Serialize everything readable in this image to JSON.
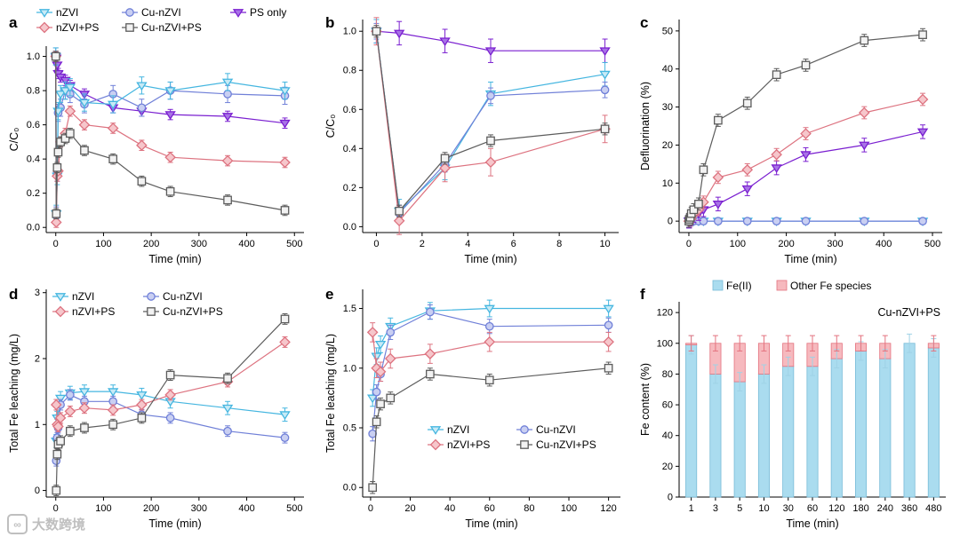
{
  "watermark": {
    "text": "大数跨境"
  },
  "series_styles": {
    "nZVI": {
      "color": "#45b6e0",
      "fill": "#c7eaf6",
      "marker": "triangle-down"
    },
    "Cu-nZVI": {
      "color": "#7080d8",
      "fill": "#c9cff2",
      "marker": "circle"
    },
    "PS only": {
      "color": "#7a1fd0",
      "fill": "#a873e6",
      "marker": "triangle-down"
    },
    "nZVI+PS": {
      "color": "#dd7380",
      "fill": "#f6c6cb",
      "marker": "diamond"
    },
    "Cu-nZVI+PS": {
      "color": "#5c5c5c",
      "fill": "#f2f2f2",
      "marker": "square"
    }
  },
  "chart_data": [
    {
      "panel_label": "a",
      "type": "line",
      "xlabel": "Time (min)",
      "ylabel": "C/C₀",
      "xlim": [
        -20,
        520
      ],
      "ylim": [
        -0.03,
        1.06
      ],
      "xticks": [
        0,
        100,
        200,
        300,
        400,
        500
      ],
      "yticks": [
        0,
        0.2,
        0.4,
        0.6,
        0.8,
        1.0
      ],
      "xdec": 0,
      "ydec": 1,
      "x": [
        0,
        1,
        3,
        5,
        10,
        20,
        30,
        60,
        120,
        180,
        240,
        360,
        480
      ],
      "series": [
        {
          "name": "PS only",
          "values": [
            1.0,
            0.99,
            0.95,
            0.9,
            0.88,
            0.86,
            0.83,
            0.78,
            0.7,
            0.68,
            0.66,
            0.65,
            0.61
          ],
          "err": 0.03
        },
        {
          "name": "Cu-nZVI",
          "values": [
            1.0,
            0.07,
            0.32,
            0.67,
            0.7,
            0.8,
            0.78,
            0.72,
            0.78,
            0.7,
            0.8,
            0.78,
            0.77
          ],
          "err": 0.05
        },
        {
          "name": "nZVI",
          "values": [
            1.0,
            0.08,
            0.3,
            0.68,
            0.78,
            0.8,
            0.82,
            0.73,
            0.72,
            0.83,
            0.8,
            0.85,
            0.8
          ],
          "err": 0.05
        },
        {
          "name": "nZVI+PS",
          "values": [
            1.0,
            0.03,
            0.3,
            0.33,
            0.5,
            0.55,
            0.68,
            0.6,
            0.58,
            0.48,
            0.41,
            0.39,
            0.38
          ],
          "err": 0.03
        },
        {
          "name": "Cu-nZVI+PS",
          "values": [
            1.0,
            0.08,
            0.35,
            0.44,
            0.5,
            0.52,
            0.55,
            0.45,
            0.4,
            0.27,
            0.21,
            0.16,
            0.1
          ],
          "err": 0.03
        }
      ]
    },
    {
      "panel_label": "b",
      "type": "line",
      "xlabel": "Time (min)",
      "ylabel": "C/C₀",
      "xlim": [
        -0.6,
        10.6
      ],
      "ylim": [
        -0.03,
        1.06
      ],
      "xticks": [
        0,
        2,
        4,
        6,
        8,
        10
      ],
      "yticks": [
        0,
        0.2,
        0.4,
        0.6,
        0.8,
        1.0
      ],
      "xdec": 0,
      "ydec": 1,
      "x": [
        0,
        1,
        3,
        5,
        10
      ],
      "series": [
        {
          "name": "PS only",
          "values": [
            1.0,
            0.99,
            0.95,
            0.9,
            0.9
          ],
          "err": 0.06
        },
        {
          "name": "nZVI",
          "values": [
            1.0,
            0.08,
            0.3,
            0.68,
            0.78
          ],
          "err": 0.06
        },
        {
          "name": "Cu-nZVI",
          "values": [
            1.0,
            0.07,
            0.32,
            0.67,
            0.7
          ],
          "err": 0.04
        },
        {
          "name": "nZVI+PS",
          "values": [
            1.0,
            0.03,
            0.3,
            0.33,
            0.5
          ],
          "err": 0.07
        },
        {
          "name": "Cu-nZVI+PS",
          "values": [
            1.0,
            0.08,
            0.35,
            0.44,
            0.5
          ],
          "err": 0.03
        }
      ]
    },
    {
      "panel_label": "c",
      "type": "line",
      "xlabel": "Time (min)",
      "ylabel": "Defluorination (%)",
      "xlim": [
        -20,
        520
      ],
      "ylim": [
        -3,
        53
      ],
      "xticks": [
        0,
        100,
        200,
        300,
        400,
        500
      ],
      "yticks": [
        0,
        10,
        20,
        30,
        40,
        50
      ],
      "xdec": 0,
      "ydec": 0,
      "x": [
        0,
        1,
        3,
        5,
        10,
        20,
        30,
        60,
        120,
        180,
        240,
        360,
        480
      ],
      "series": [
        {
          "name": "nZVI",
          "values": [
            0,
            0,
            0,
            0,
            0,
            0,
            0,
            0,
            0,
            0,
            0,
            0,
            0
          ],
          "err": 0.6
        },
        {
          "name": "Cu-nZVI",
          "values": [
            0,
            0,
            0,
            0,
            0,
            0,
            0,
            0,
            0,
            0,
            0,
            0,
            0
          ],
          "err": 0.6
        },
        {
          "name": "PS only",
          "values": [
            0,
            0,
            0.5,
            1,
            1.5,
            2,
            3,
            4.5,
            8.5,
            14,
            17.5,
            20,
            23.5
          ],
          "err": 1.8
        },
        {
          "name": "nZVI+PS",
          "values": [
            0,
            0,
            0.5,
            1,
            2,
            3,
            5,
            11.5,
            13.5,
            17.5,
            23,
            28.5,
            32
          ],
          "err": 1.6
        },
        {
          "name": "Cu-nZVI+PS",
          "values": [
            0,
            0.5,
            1,
            2,
            3,
            4.5,
            13.5,
            26.5,
            31,
            38.5,
            41,
            47.5,
            49
          ],
          "err": 1.6
        }
      ]
    },
    {
      "panel_label": "d",
      "type": "line",
      "xlabel": "Time (min)",
      "ylabel": "Total Fe leaching (mg/L)",
      "xlim": [
        -20,
        520
      ],
      "ylim": [
        -0.1,
        3.05
      ],
      "xticks": [
        0,
        100,
        200,
        300,
        400,
        500
      ],
      "yticks": [
        0,
        1,
        2,
        3
      ],
      "xdec": 0,
      "ydec": 0,
      "x": [
        1,
        3,
        5,
        10,
        30,
        60,
        120,
        180,
        240,
        360,
        480
      ],
      "series": [
        {
          "name": "nZVI",
          "values": [
            0.75,
            1.1,
            1.25,
            1.4,
            1.48,
            1.5,
            1.5,
            1.45,
            1.35,
            1.25,
            1.15
          ],
          "err": 0.1
        },
        {
          "name": "Cu-nZVI",
          "values": [
            0.45,
            0.8,
            0.95,
            1.3,
            1.45,
            1.35,
            1.35,
            1.15,
            1.1,
            0.9,
            0.8
          ],
          "err": 0.08
        },
        {
          "name": "nZVI+PS",
          "values": [
            1.3,
            1.0,
            0.97,
            1.1,
            1.2,
            1.25,
            1.22,
            1.3,
            1.45,
            1.65,
            2.25
          ],
          "err": 0.08
        },
        {
          "name": "Cu-nZVI+PS",
          "values": [
            0.0,
            0.55,
            0.7,
            0.75,
            0.9,
            0.95,
            1.0,
            1.1,
            1.75,
            1.7,
            2.6
          ],
          "err": 0.08
        }
      ]
    },
    {
      "panel_label": "e",
      "type": "line",
      "xlabel": "Time (min)",
      "ylabel": "Total Fe leaching (mg/L)",
      "xlim": [
        -4,
        126
      ],
      "ylim": [
        -0.08,
        1.66
      ],
      "xticks": [
        0,
        20,
        40,
        60,
        80,
        100,
        120
      ],
      "yticks": [
        0,
        0.5,
        1.0,
        1.5
      ],
      "xdec": 0,
      "ydec": 1,
      "x": [
        1,
        3,
        5,
        10,
        30,
        60,
        120
      ],
      "series": [
        {
          "name": "nZVI",
          "values": [
            0.75,
            1.1,
            1.2,
            1.35,
            1.48,
            1.5,
            1.5
          ],
          "err": 0.07
        },
        {
          "name": "Cu-nZVI",
          "values": [
            0.45,
            0.8,
            0.95,
            1.3,
            1.47,
            1.35,
            1.36
          ],
          "err": 0.06
        },
        {
          "name": "nZVI+PS",
          "values": [
            1.3,
            1.0,
            0.97,
            1.08,
            1.12,
            1.22,
            1.22
          ],
          "err": 0.08
        },
        {
          "name": "Cu-nZVI+PS",
          "values": [
            0.0,
            0.55,
            0.7,
            0.75,
            0.95,
            0.9,
            1.0
          ],
          "err": 0.05
        }
      ]
    },
    {
      "panel_label": "f",
      "type": "stacked_bar",
      "xlabel": "Time (min)",
      "ylabel": "Fe content (%)",
      "categories": [
        "1",
        "3",
        "5",
        "10",
        "30",
        "60",
        "120",
        "180",
        "240",
        "360",
        "480"
      ],
      "ylim": [
        0,
        127
      ],
      "yticks": [
        0,
        20,
        40,
        60,
        80,
        100,
        120
      ],
      "ydec": 0,
      "annotation": "Cu-nZVI+PS",
      "series": [
        {
          "name": "Fe(II)",
          "values": [
            99,
            80,
            75,
            80,
            85,
            85,
            90,
            95,
            90,
            100,
            97
          ],
          "err": 6,
          "fill": "#aadcef",
          "color": "#79bcd8",
          "err_color": "#9fd2e6"
        },
        {
          "name": "Other Fe species",
          "values": [
            1,
            20,
            25,
            20,
            15,
            15,
            10,
            5,
            10,
            0,
            3
          ],
          "err": 5,
          "fill": "#f6b9be",
          "color": "#e4737f",
          "err_color": "#e4737f"
        }
      ]
    }
  ]
}
